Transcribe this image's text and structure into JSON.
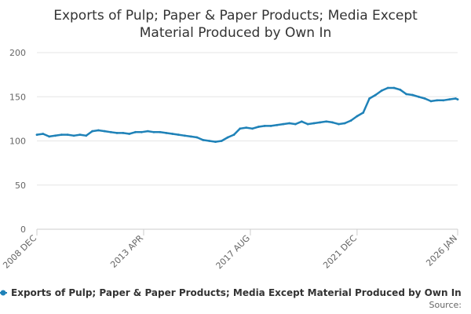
{
  "chart_data": {
    "type": "line",
    "title_lines": [
      "Exports of Pulp; Paper & Paper Products; Media Except",
      "Material Produced by Own In"
    ],
    "x_tick_labels": [
      "2008 DEC",
      "2013 APR",
      "2017 AUG",
      "2021 DEC",
      "2026 JAN"
    ],
    "x_tick_months": [
      "2008-12",
      "2013-04",
      "2017-08",
      "2021-12",
      "2026-01"
    ],
    "xlim": [
      "2008-12",
      "2026-01"
    ],
    "y_ticks": [
      0,
      50,
      100,
      150,
      200
    ],
    "ylim": [
      0,
      200
    ],
    "grid": true,
    "legend_position": "bottom",
    "series": [
      {
        "name": "Exports of Pulp; Paper & Paper Products; Media Except Material Produced by Own In",
        "color": "#1f82b8",
        "points": [
          [
            "2008-12",
            107
          ],
          [
            "2009-03",
            108
          ],
          [
            "2009-06",
            105
          ],
          [
            "2009-09",
            106
          ],
          [
            "2009-12",
            107
          ],
          [
            "2010-03",
            107
          ],
          [
            "2010-06",
            106
          ],
          [
            "2010-09",
            107
          ],
          [
            "2010-12",
            106
          ],
          [
            "2011-03",
            111
          ],
          [
            "2011-06",
            112
          ],
          [
            "2011-09",
            111
          ],
          [
            "2011-12",
            110
          ],
          [
            "2012-03",
            109
          ],
          [
            "2012-06",
            109
          ],
          [
            "2012-09",
            108
          ],
          [
            "2012-12",
            110
          ],
          [
            "2013-03",
            110
          ],
          [
            "2013-06",
            111
          ],
          [
            "2013-09",
            110
          ],
          [
            "2013-12",
            110
          ],
          [
            "2014-03",
            109
          ],
          [
            "2014-06",
            108
          ],
          [
            "2014-09",
            107
          ],
          [
            "2014-12",
            106
          ],
          [
            "2015-03",
            105
          ],
          [
            "2015-06",
            104
          ],
          [
            "2015-09",
            101
          ],
          [
            "2015-12",
            100
          ],
          [
            "2016-03",
            99
          ],
          [
            "2016-06",
            100
          ],
          [
            "2016-09",
            104
          ],
          [
            "2016-12",
            107
          ],
          [
            "2017-03",
            114
          ],
          [
            "2017-06",
            115
          ],
          [
            "2017-09",
            114
          ],
          [
            "2017-12",
            116
          ],
          [
            "2018-03",
            117
          ],
          [
            "2018-06",
            117
          ],
          [
            "2018-09",
            118
          ],
          [
            "2018-12",
            119
          ],
          [
            "2019-03",
            120
          ],
          [
            "2019-06",
            119
          ],
          [
            "2019-09",
            122
          ],
          [
            "2019-12",
            119
          ],
          [
            "2020-03",
            120
          ],
          [
            "2020-06",
            121
          ],
          [
            "2020-09",
            122
          ],
          [
            "2020-12",
            121
          ],
          [
            "2021-03",
            119
          ],
          [
            "2021-06",
            120
          ],
          [
            "2021-09",
            123
          ],
          [
            "2021-12",
            128
          ],
          [
            "2022-03",
            132
          ],
          [
            "2022-06",
            148
          ],
          [
            "2022-09",
            152
          ],
          [
            "2022-12",
            157
          ],
          [
            "2023-03",
            160
          ],
          [
            "2023-06",
            160
          ],
          [
            "2023-09",
            158
          ],
          [
            "2023-12",
            153
          ],
          [
            "2024-03",
            152
          ],
          [
            "2024-06",
            150
          ],
          [
            "2024-09",
            148
          ],
          [
            "2024-12",
            145
          ],
          [
            "2025-03",
            146
          ],
          [
            "2025-06",
            146
          ],
          [
            "2025-09",
            147
          ],
          [
            "2025-12",
            148
          ],
          [
            "2026-01",
            147
          ]
        ]
      }
    ]
  },
  "footer": {
    "source_label": "Source:"
  }
}
